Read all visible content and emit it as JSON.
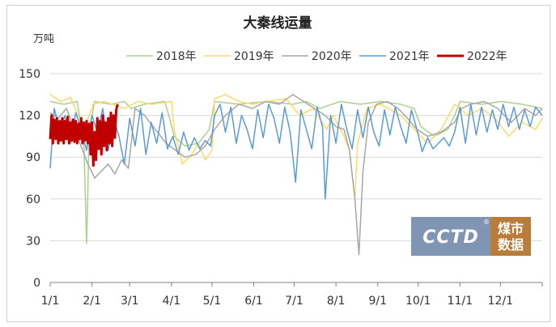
{
  "chart_data": {
    "type": "line",
    "title": "大秦线运量",
    "ylabel": "万吨",
    "xlabel": "",
    "ylim": [
      0,
      150
    ],
    "yticks": [
      0,
      30,
      60,
      90,
      120,
      150
    ],
    "xlim": [
      0,
      365
    ],
    "xticks": [
      {
        "label": "1/1",
        "day": 0
      },
      {
        "label": "2/1",
        "day": 31
      },
      {
        "label": "3/1",
        "day": 59
      },
      {
        "label": "4/1",
        "day": 90
      },
      {
        "label": "5/1",
        "day": 120
      },
      {
        "label": "6/1",
        "day": 151
      },
      {
        "label": "7/1",
        "day": 181
      },
      {
        "label": "8/1",
        "day": 212
      },
      {
        "label": "9/1",
        "day": 243
      },
      {
        "label": "10/1",
        "day": 273
      },
      {
        "label": "11/1",
        "day": 304
      },
      {
        "label": "12/1",
        "day": 334
      }
    ],
    "grid": "horizontal",
    "legend_position": "top",
    "series": [
      {
        "name": "2018年",
        "color": "#a9d18e",
        "width": 1.5,
        "points": [
          [
            0,
            130
          ],
          [
            10,
            128
          ],
          [
            20,
            130
          ],
          [
            25,
            100
          ],
          [
            27,
            28
          ],
          [
            29,
            110
          ],
          [
            33,
            130
          ],
          [
            45,
            128
          ],
          [
            55,
            130
          ],
          [
            60,
            125
          ],
          [
            70,
            128
          ],
          [
            85,
            130
          ],
          [
            88,
            120
          ],
          [
            92,
            105
          ],
          [
            100,
            98
          ],
          [
            110,
            100
          ],
          [
            118,
            110
          ],
          [
            122,
            130
          ],
          [
            140,
            128
          ],
          [
            160,
            130
          ],
          [
            180,
            128
          ],
          [
            190,
            130
          ],
          [
            200,
            125
          ],
          [
            215,
            130
          ],
          [
            230,
            128
          ],
          [
            245,
            130
          ],
          [
            260,
            128
          ],
          [
            270,
            125
          ],
          [
            275,
            112
          ],
          [
            285,
            105
          ],
          [
            295,
            110
          ],
          [
            300,
            120
          ],
          [
            304,
            130
          ],
          [
            320,
            128
          ],
          [
            335,
            130
          ],
          [
            350,
            128
          ],
          [
            365,
            125
          ]
        ]
      },
      {
        "name": "2019年",
        "color": "#ffd966",
        "width": 1.5,
        "points": [
          [
            0,
            135
          ],
          [
            8,
            130
          ],
          [
            15,
            133
          ],
          [
            25,
            110
          ],
          [
            32,
            128
          ],
          [
            40,
            130
          ],
          [
            55,
            125
          ],
          [
            65,
            130
          ],
          [
            75,
            128
          ],
          [
            90,
            130
          ],
          [
            92,
            110
          ],
          [
            98,
            85
          ],
          [
            105,
            92
          ],
          [
            110,
            100
          ],
          [
            115,
            88
          ],
          [
            120,
            95
          ],
          [
            122,
            132
          ],
          [
            130,
            135
          ],
          [
            140,
            130
          ],
          [
            150,
            128
          ],
          [
            160,
            130
          ],
          [
            175,
            132
          ],
          [
            185,
            120
          ],
          [
            195,
            125
          ],
          [
            205,
            110
          ],
          [
            210,
            120
          ],
          [
            218,
            105
          ],
          [
            222,
            95
          ],
          [
            226,
            60
          ],
          [
            228,
            100
          ],
          [
            235,
            125
          ],
          [
            245,
            128
          ],
          [
            260,
            120
          ],
          [
            270,
            110
          ],
          [
            280,
            100
          ],
          [
            290,
            110
          ],
          [
            300,
            128
          ],
          [
            310,
            120
          ],
          [
            320,
            125
          ],
          [
            330,
            118
          ],
          [
            340,
            105
          ],
          [
            350,
            115
          ],
          [
            360,
            110
          ],
          [
            365,
            118
          ]
        ]
      },
      {
        "name": "2020年",
        "color": "#a6a6a6",
        "width": 1.5,
        "points": [
          [
            0,
            122
          ],
          [
            6,
            118
          ],
          [
            12,
            125
          ],
          [
            18,
            110
          ],
          [
            24,
            95
          ],
          [
            28,
            85
          ],
          [
            33,
            75
          ],
          [
            38,
            80
          ],
          [
            43,
            85
          ],
          [
            48,
            78
          ],
          [
            53,
            88
          ],
          [
            58,
            82
          ],
          [
            63,
            125
          ],
          [
            70,
            120
          ],
          [
            78,
            110
          ],
          [
            86,
            100
          ],
          [
            93,
            95
          ],
          [
            100,
            90
          ],
          [
            108,
            92
          ],
          [
            115,
            98
          ],
          [
            122,
            110
          ],
          [
            130,
            120
          ],
          [
            140,
            128
          ],
          [
            150,
            125
          ],
          [
            160,
            130
          ],
          [
            170,
            128
          ],
          [
            180,
            135
          ],
          [
            188,
            130
          ],
          [
            196,
            125
          ],
          [
            204,
            120
          ],
          [
            212,
            112
          ],
          [
            218,
            110
          ],
          [
            222,
            95
          ],
          [
            226,
            60
          ],
          [
            229,
            20
          ],
          [
            232,
            80
          ],
          [
            236,
            115
          ],
          [
            242,
            128
          ],
          [
            250,
            130
          ],
          [
            258,
            125
          ],
          [
            265,
            118
          ],
          [
            272,
            110
          ],
          [
            280,
            105
          ],
          [
            290,
            108
          ],
          [
            300,
            115
          ],
          [
            305,
            125
          ],
          [
            312,
            128
          ],
          [
            322,
            130
          ],
          [
            332,
            125
          ],
          [
            342,
            115
          ],
          [
            352,
            125
          ],
          [
            360,
            120
          ],
          [
            365,
            125
          ]
        ]
      },
      {
        "name": "2021年",
        "color": "#5b9bd5",
        "width": 1.5,
        "points": [
          [
            0,
            82
          ],
          [
            3,
            125
          ],
          [
            7,
            110
          ],
          [
            11,
            120
          ],
          [
            15,
            100
          ],
          [
            19,
            122
          ],
          [
            23,
            110
          ],
          [
            27,
            95
          ],
          [
            31,
            120
          ],
          [
            35,
            108
          ],
          [
            39,
            125
          ],
          [
            43,
            95
          ],
          [
            47,
            118
          ],
          [
            51,
            105
          ],
          [
            55,
            85
          ],
          [
            59,
            118
          ],
          [
            63,
            98
          ],
          [
            67,
            125
          ],
          [
            71,
            92
          ],
          [
            75,
            115
          ],
          [
            79,
            100
          ],
          [
            83,
            122
          ],
          [
            87,
            96
          ],
          [
            91,
            105
          ],
          [
            95,
            92
          ],
          [
            99,
            108
          ],
          [
            103,
            95
          ],
          [
            107,
            104
          ],
          [
            111,
            96
          ],
          [
            115,
            102
          ],
          [
            119,
            98
          ],
          [
            122,
            120
          ],
          [
            126,
            128
          ],
          [
            130,
            108
          ],
          [
            134,
            126
          ],
          [
            138,
            100
          ],
          [
            142,
            120
          ],
          [
            146,
            110
          ],
          [
            150,
            96
          ],
          [
            154,
            124
          ],
          [
            158,
            104
          ],
          [
            162,
            128
          ],
          [
            166,
            118
          ],
          [
            170,
            100
          ],
          [
            174,
            126
          ],
          [
            178,
            108
          ],
          [
            182,
            72
          ],
          [
            186,
            124
          ],
          [
            190,
            110
          ],
          [
            194,
            96
          ],
          [
            198,
            126
          ],
          [
            202,
            112
          ],
          [
            204,
            60
          ],
          [
            208,
            120
          ],
          [
            212,
            100
          ],
          [
            216,
            128
          ],
          [
            220,
            110
          ],
          [
            224,
            96
          ],
          [
            228,
            124
          ],
          [
            232,
            104
          ],
          [
            236,
            126
          ],
          [
            240,
            108
          ],
          [
            244,
            98
          ],
          [
            248,
            124
          ],
          [
            252,
            106
          ],
          [
            256,
            126
          ],
          [
            260,
            112
          ],
          [
            264,
            100
          ],
          [
            268,
            124
          ],
          [
            272,
            110
          ],
          [
            276,
            94
          ],
          [
            280,
            104
          ],
          [
            284,
            96
          ],
          [
            288,
            100
          ],
          [
            292,
            104
          ],
          [
            296,
            98
          ],
          [
            300,
            108
          ],
          [
            304,
            126
          ],
          [
            308,
            100
          ],
          [
            312,
            128
          ],
          [
            316,
            106
          ],
          [
            320,
            126
          ],
          [
            324,
            108
          ],
          [
            328,
            124
          ],
          [
            332,
            110
          ],
          [
            336,
            128
          ],
          [
            340,
            112
          ],
          [
            344,
            126
          ],
          [
            348,
            110
          ],
          [
            352,
            124
          ],
          [
            356,
            112
          ],
          [
            360,
            126
          ],
          [
            365,
            120
          ]
        ]
      },
      {
        "name": "2022年",
        "color": "#c00000",
        "width": 3,
        "points": [
          [
            0,
            103
          ],
          [
            1,
            120
          ],
          [
            2,
            100
          ],
          [
            3,
            117
          ],
          [
            4,
            103
          ],
          [
            5,
            118
          ],
          [
            6,
            100
          ],
          [
            7,
            116
          ],
          [
            8,
            102
          ],
          [
            9,
            118
          ],
          [
            10,
            100
          ],
          [
            11,
            116
          ],
          [
            12,
            103
          ],
          [
            13,
            119
          ],
          [
            14,
            100
          ],
          [
            15,
            115
          ],
          [
            16,
            102
          ],
          [
            17,
            117
          ],
          [
            18,
            101
          ],
          [
            19,
            116
          ],
          [
            20,
            100
          ],
          [
            21,
            114
          ],
          [
            22,
            103
          ],
          [
            23,
            118
          ],
          [
            24,
            100
          ],
          [
            25,
            115
          ],
          [
            26,
            102
          ],
          [
            27,
            116
          ],
          [
            28,
            100
          ],
          [
            29,
            114
          ],
          [
            30,
            92
          ],
          [
            31,
            115
          ],
          [
            32,
            84
          ],
          [
            33,
            108
          ],
          [
            34,
            88
          ],
          [
            35,
            118
          ],
          [
            36,
            96
          ],
          [
            37,
            116
          ],
          [
            38,
            92
          ],
          [
            39,
            120
          ],
          [
            40,
            98
          ],
          [
            41,
            115
          ],
          [
            42,
            95
          ],
          [
            43,
            118
          ],
          [
            44,
            100
          ],
          [
            45,
            122
          ],
          [
            46,
            98
          ],
          [
            47,
            120
          ],
          [
            48,
            104
          ],
          [
            49,
            124
          ],
          [
            50,
            128
          ]
        ]
      }
    ]
  },
  "logo": {
    "brand": "CCTD",
    "line1": "煤市",
    "line2": "数据",
    "registered": "®",
    "brand_color": "#7f95b3",
    "accent_color": "#b87c3b"
  }
}
